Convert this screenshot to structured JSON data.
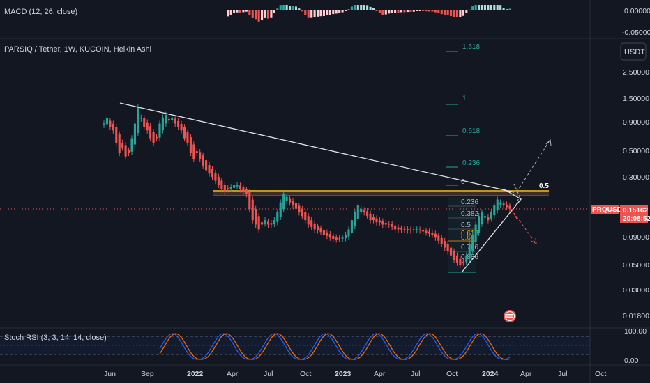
{
  "indicators": {
    "macd_label": "MACD (12, 26, close)",
    "stoch_label": "Stoch RSI (3, 3, 14, 14, close)"
  },
  "main": {
    "title": "PARSIQ / Tether, 1W, KUCOIN, Heikin Ashi",
    "currency_button": "USDT"
  },
  "price_axis": {
    "labels": [
      "2.50000",
      "1.50000",
      "0.90000",
      "0.50000",
      "0.30000",
      "0.09000",
      "0.05000",
      "0.03000",
      "0.01800"
    ]
  },
  "macd_axis": {
    "labels": [
      "0.00000",
      "-0.05000"
    ]
  },
  "stoch_axis": {
    "labels": [
      "100.00",
      "0.00"
    ]
  },
  "time_axis": {
    "labels": [
      "Jun",
      "Sep",
      "2022",
      "Apr",
      "Jul",
      "Oct",
      "2023",
      "Apr",
      "Jul",
      "Oct",
      "2024",
      "Apr",
      "Jul",
      "Oct"
    ]
  },
  "symbol_badge": {
    "symbol": "PRQUSDT",
    "price": "0.15162",
    "countdown": "20:08:52"
  },
  "fib_levels": [
    "1.618",
    "1",
    "0.618",
    "0.236",
    "0",
    "0.236",
    "0.382",
    "0.5",
    "0.618",
    "0.65",
    "0.786",
    "0.886"
  ],
  "chart_annotations": {
    "half_label": "0.5"
  },
  "colors": {
    "up": "#26a69a",
    "down": "#ef5350",
    "accent": "#f0b90b",
    "background": "#131722"
  },
  "chart_data": {
    "type": "candlestick",
    "title": "PARSIQ / Tether, 1W, KUCOIN, Heikin Ashi",
    "scale": "log",
    "ylim": [
      0.015,
      4.0
    ],
    "x_ticks": [
      "Jun",
      "Sep",
      "2022",
      "Apr",
      "Jul",
      "Oct",
      "2023",
      "Apr",
      "Jul",
      "Oct",
      "2024",
      "Apr",
      "Jul",
      "Oct"
    ],
    "last_price": 0.15162,
    "close_series": [
      0.8,
      0.9,
      0.75,
      0.7,
      0.55,
      0.45,
      0.5,
      0.42,
      0.45,
      0.6,
      0.8,
      1.1,
      0.9,
      0.75,
      0.7,
      0.6,
      0.55,
      0.6,
      0.8,
      0.9,
      0.95,
      0.85,
      0.9,
      0.8,
      0.75,
      0.7,
      0.6,
      0.55,
      0.45,
      0.4,
      0.45,
      0.4,
      0.35,
      0.32,
      0.3,
      0.28,
      0.26,
      0.24,
      0.22,
      0.21,
      0.22,
      0.23,
      0.24,
      0.24,
      0.22,
      0.21,
      0.2,
      0.15,
      0.12,
      0.11,
      0.1,
      0.11,
      0.12,
      0.11,
      0.11,
      0.12,
      0.14,
      0.17,
      0.2,
      0.19,
      0.17,
      0.16,
      0.15,
      0.14,
      0.13,
      0.12,
      0.11,
      0.105,
      0.1,
      0.098,
      0.095,
      0.09,
      0.088,
      0.085,
      0.083,
      0.082,
      0.083,
      0.085,
      0.09,
      0.1,
      0.12,
      0.14,
      0.16,
      0.15,
      0.14,
      0.13,
      0.12,
      0.12,
      0.115,
      0.115,
      0.11,
      0.11,
      0.11,
      0.105,
      0.1,
      0.1,
      0.1,
      0.1,
      0.098,
      0.098,
      0.1,
      0.1,
      0.098,
      0.096,
      0.094,
      0.092,
      0.09,
      0.085,
      0.08,
      0.075,
      0.07,
      0.065,
      0.06,
      0.055,
      0.052,
      0.05,
      0.052,
      0.06,
      0.075,
      0.09,
      0.11,
      0.13,
      0.14,
      0.13,
      0.12,
      0.14,
      0.16,
      0.18,
      0.17,
      0.16,
      0.155,
      0.15
    ]
  }
}
